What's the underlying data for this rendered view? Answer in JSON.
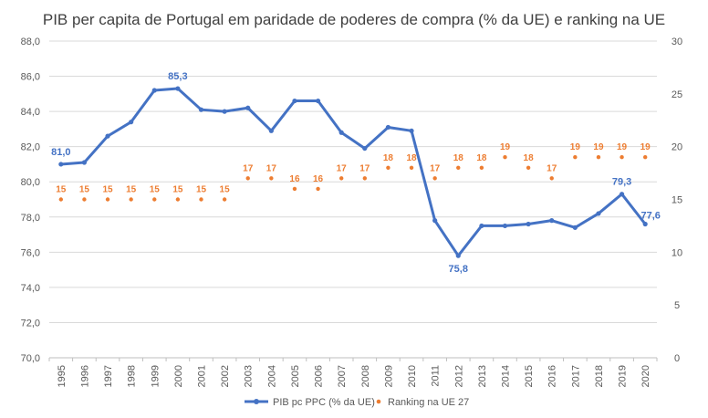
{
  "chart_data": {
    "type": "line",
    "title": "PIB per capita de Portugal em paridade de poderes de compra (% da UE) e ranking na UE",
    "x": [
      "1995",
      "1996",
      "1997",
      "1998",
      "1999",
      "2000",
      "2001",
      "2002",
      "2003",
      "2004",
      "2005",
      "2006",
      "2007",
      "2008",
      "2009",
      "2010",
      "2011",
      "2012",
      "2013",
      "2014",
      "2015",
      "2016",
      "2017",
      "2018",
      "2019",
      "2020"
    ],
    "y_left": {
      "min": 70,
      "max": 88,
      "step": 2,
      "ticks": [
        "70,0",
        "72,0",
        "74,0",
        "76,0",
        "78,0",
        "80,0",
        "82,0",
        "84,0",
        "86,0",
        "88,0"
      ]
    },
    "y_right": {
      "min": 0,
      "max": 30,
      "step": 5,
      "ticks": [
        "0",
        "5",
        "10",
        "15",
        "20",
        "25",
        "30"
      ]
    },
    "grid": "horizontal",
    "legend_position": "bottom",
    "series": [
      {
        "name": "PIB pc PPC (% da UE)",
        "axis": "left",
        "style": "line",
        "color": "#4472C4",
        "values": [
          81.0,
          81.1,
          82.6,
          83.4,
          85.2,
          85.3,
          84.1,
          84.0,
          84.2,
          82.9,
          84.6,
          84.6,
          82.8,
          81.9,
          83.1,
          82.9,
          77.8,
          75.8,
          77.5,
          77.5,
          77.6,
          77.8,
          77.4,
          78.2,
          79.3,
          77.6
        ],
        "data_labels": [
          {
            "year": "1995",
            "text": "81,0",
            "value": 81.0
          },
          {
            "year": "2000",
            "text": "85,3",
            "value": 85.3
          },
          {
            "year": "2012",
            "text": "75,8",
            "value": 75.8
          },
          {
            "year": "2019",
            "text": "79,3",
            "value": 79.3
          },
          {
            "year": "2020",
            "text": "77,6",
            "value": 77.6
          }
        ]
      },
      {
        "name": "Ranking na UE 27",
        "axis": "right",
        "style": "markers",
        "color": "#ED7D31",
        "values": [
          15,
          15,
          15,
          15,
          15,
          15,
          15,
          15,
          17,
          17,
          16,
          16,
          17,
          17,
          18,
          18,
          17,
          18,
          18,
          19,
          18,
          17,
          19,
          19,
          19,
          19
        ],
        "labels": [
          "15",
          "15",
          "15",
          "15",
          "15",
          "15",
          "15",
          "15",
          "17",
          "17",
          "16",
          "16",
          "17",
          "17",
          "18",
          "18",
          "17",
          "18",
          "18",
          "19",
          "18",
          "17",
          "19",
          "19",
          "19",
          "19"
        ]
      }
    ]
  }
}
